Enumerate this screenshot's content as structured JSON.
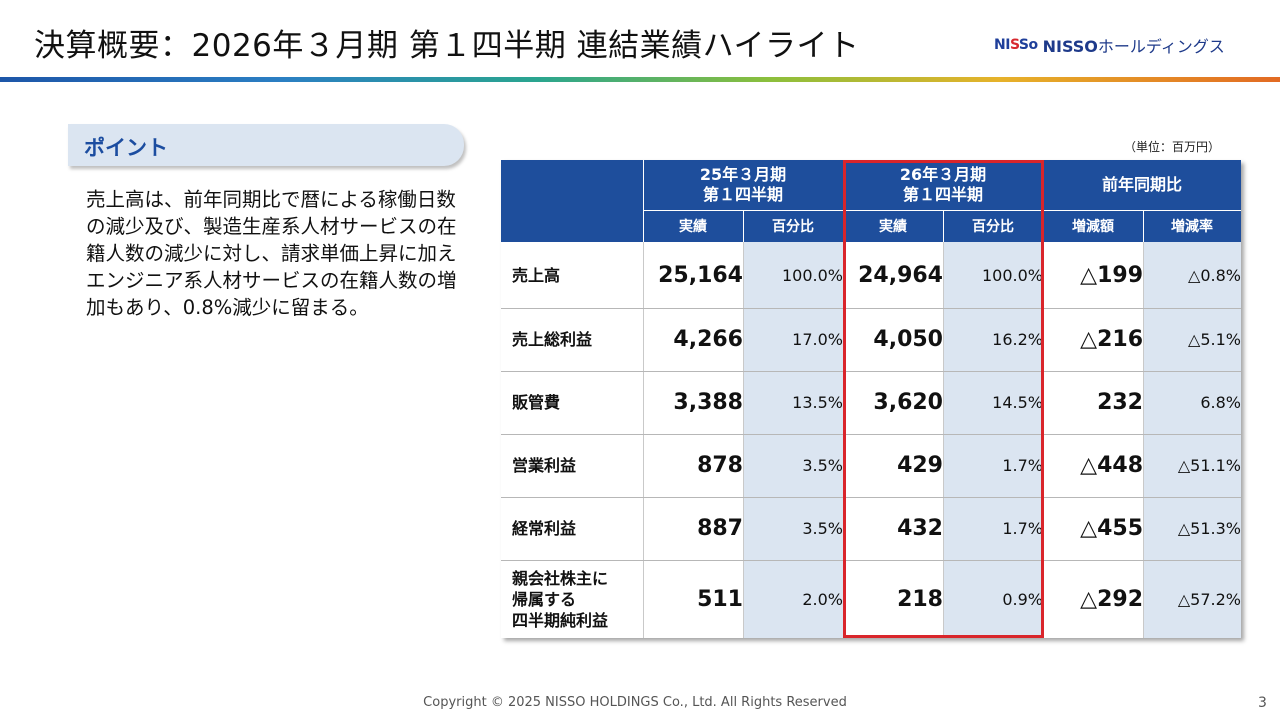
{
  "slide": {
    "title": "決算概要：2026年３月期 第１四半期 連結業績ハイライト",
    "logo": {
      "mark_n": "N",
      "mark_i": "I",
      "mark_s1": "S",
      "mark_s2": "S",
      "mark_o": "o",
      "text_en": "NISSO",
      "text_jp": "ホールディングス"
    },
    "point_label": "ポイント",
    "summary": "売上高は、前年同期比で暦による稼働日数の減少及び、製造生産系人材サービスの在籍人数の減少に対し、請求単価上昇に加えエンジニア系人材サービスの在籍人数の増加もあり、0.8%減少に留まる。",
    "unit": "（単位：百万円）",
    "copyright": "Copyright © 2025 NISSO HOLDINGS Co., Ltd. All Rights Reserved",
    "page_number": "3",
    "colors": {
      "header_blue": "#1e4e9c",
      "shade_blue": "#dbe5f1",
      "highlight_red": "#d9252b",
      "logo_blue": "#1e3a8a",
      "logo_red": "#d7282f"
    }
  },
  "table": {
    "groups": [
      {
        "line1": "25年３月期",
        "line2": "第１四半期"
      },
      {
        "line1": "26年３月期",
        "line2": "第１四半期"
      },
      {
        "line1": "前年同期比",
        "line2": ""
      }
    ],
    "subheaders": [
      "実績",
      "百分比",
      "実績",
      "百分比",
      "増減額",
      "増減率"
    ],
    "rows": [
      {
        "label": [
          "売上高"
        ],
        "prev_amount": "25,164",
        "prev_pct": "100.0%",
        "cur_amount": "24,964",
        "cur_pct": "100.0%",
        "diff": "△199",
        "rate": "△0.8%"
      },
      {
        "label": [
          "売上総利益"
        ],
        "prev_amount": "4,266",
        "prev_pct": "17.0%",
        "cur_amount": "4,050",
        "cur_pct": "16.2%",
        "diff": "△216",
        "rate": "△5.1%"
      },
      {
        "label": [
          "販管費"
        ],
        "prev_amount": "3,388",
        "prev_pct": "13.5%",
        "cur_amount": "3,620",
        "cur_pct": "14.5%",
        "diff": "232",
        "rate": "6.8%"
      },
      {
        "label": [
          "営業利益"
        ],
        "prev_amount": "878",
        "prev_pct": "3.5%",
        "cur_amount": "429",
        "cur_pct": "1.7%",
        "diff": "△448",
        "rate": "△51.1%"
      },
      {
        "label": [
          "経常利益"
        ],
        "prev_amount": "887",
        "prev_pct": "3.5%",
        "cur_amount": "432",
        "cur_pct": "1.7%",
        "diff": "△455",
        "rate": "△51.3%"
      },
      {
        "label": [
          "親会社株主に",
          "帰属する",
          "四半期純利益"
        ],
        "prev_amount": "511",
        "prev_pct": "2.0%",
        "cur_amount": "218",
        "cur_pct": "0.9%",
        "diff": "△292",
        "rate": "△57.2%"
      }
    ]
  }
}
